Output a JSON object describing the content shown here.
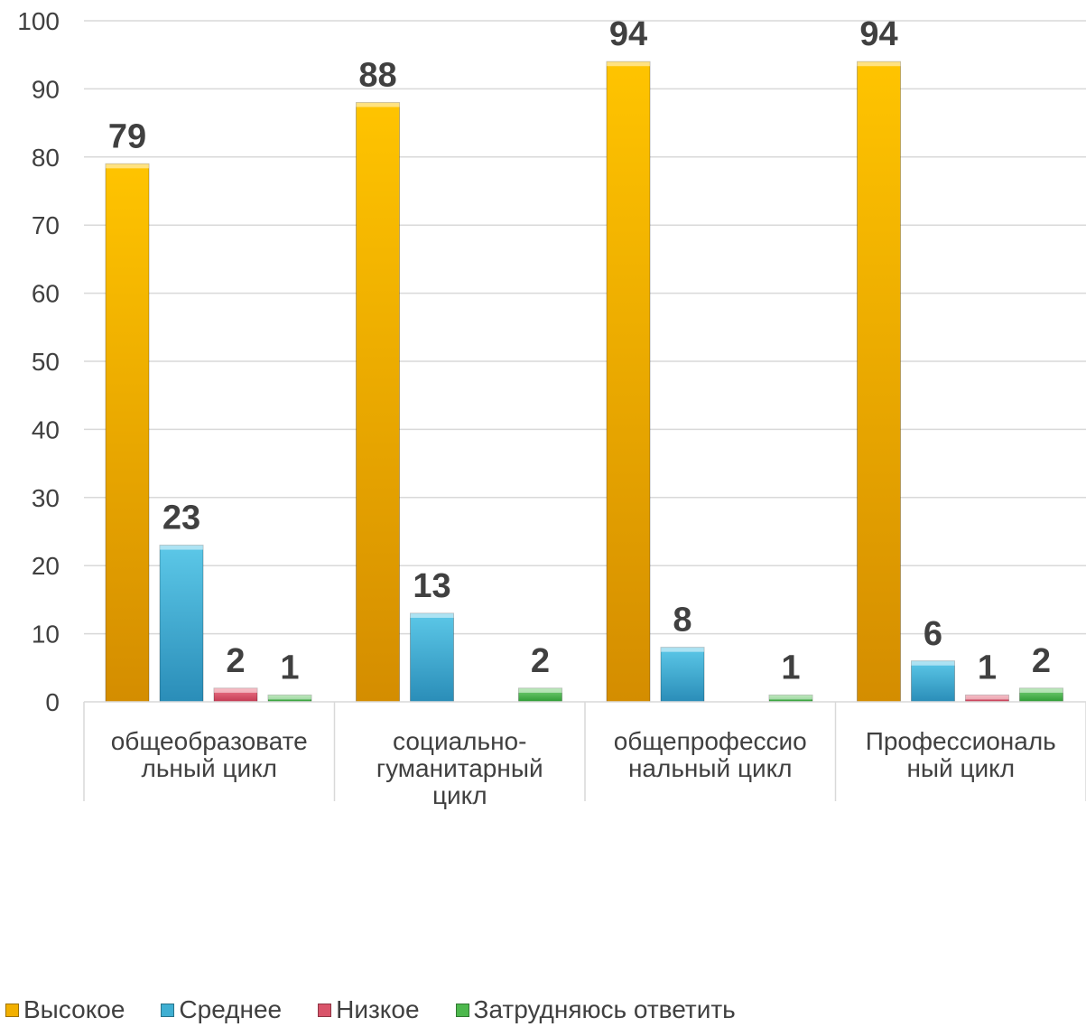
{
  "chart_data": {
    "type": "bar",
    "title": "",
    "xlabel": "",
    "ylabel": "",
    "ylim": [
      0,
      100
    ],
    "yticks": [
      "0",
      "10",
      "20",
      "30",
      "40",
      "50",
      "60",
      "70",
      "80",
      "90",
      "100"
    ],
    "grid": true,
    "legend_position": "bottom",
    "categories": [
      [
        "общеобразовате",
        "льный  цикл"
      ],
      [
        "социально-",
        "гуманитарный",
        "цикл"
      ],
      [
        "общепрофессио",
        "нальный цикл"
      ],
      [
        "Профессиональ",
        "ный цикл"
      ]
    ],
    "series": [
      {
        "name": "Высокое",
        "color": "#F2B000",
        "values": [
          79,
          88,
          94,
          94
        ],
        "labels": [
          "79",
          "88",
          "94",
          "94"
        ]
      },
      {
        "name": "Среднее",
        "color": "#3FAFD2",
        "values": [
          23,
          13,
          8,
          6
        ],
        "labels": [
          "23",
          "13",
          "8",
          "6"
        ]
      },
      {
        "name": "Низкое",
        "color": "#D9546A",
        "values": [
          2,
          0,
          0,
          1
        ],
        "labels": [
          "2",
          "",
          "",
          "1"
        ]
      },
      {
        "name": "Затрудняюсь ответить",
        "color": "#4DB84D",
        "values": [
          1,
          2,
          1,
          2
        ],
        "labels": [
          "1",
          "2",
          "1",
          "2"
        ]
      }
    ]
  }
}
